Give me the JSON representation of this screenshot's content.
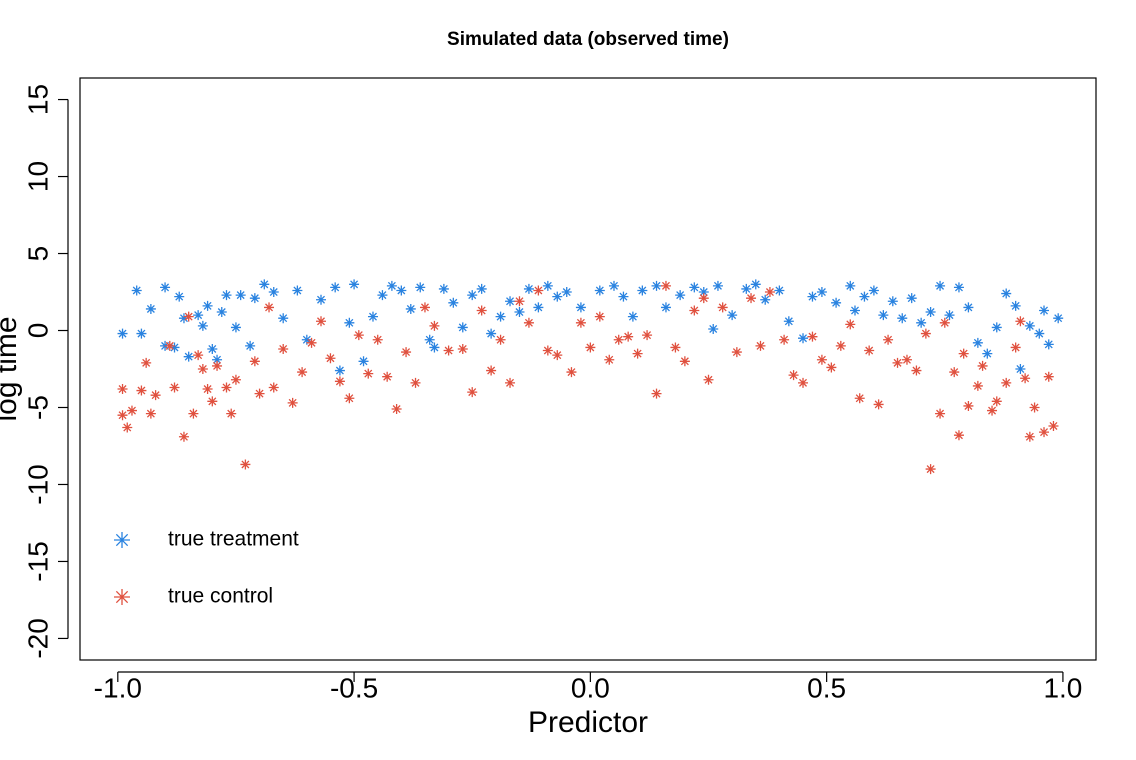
{
  "chart_data": {
    "type": "scatter",
    "title": "Simulated data (observed time)",
    "xlabel": "Predictor",
    "ylabel": "log time",
    "xlim": [
      -1.08,
      1.07
    ],
    "ylim": [
      -21.4,
      16.4
    ],
    "xticks": [
      {
        "value": -1.0,
        "label": "-1.0"
      },
      {
        "value": -0.5,
        "label": "-0.5"
      },
      {
        "value": 0.0,
        "label": "0.0"
      },
      {
        "value": 0.5,
        "label": "0.5"
      },
      {
        "value": 1.0,
        "label": "1.0"
      }
    ],
    "yticks": [
      -20,
      -15,
      -10,
      -5,
      0,
      5,
      10,
      15
    ],
    "legend": "bottomleft",
    "marker": "asterisk",
    "series": [
      {
        "name": "true treatment",
        "color": "#2a83e0",
        "x": [
          -0.99,
          -0.96,
          -0.95,
          -0.93,
          -0.9,
          -0.9,
          -0.88,
          -0.87,
          -0.86,
          -0.85,
          -0.83,
          -0.82,
          -0.81,
          -0.8,
          -0.79,
          -0.78,
          -0.77,
          -0.75,
          -0.74,
          -0.72,
          -0.71,
          -0.69,
          -0.67,
          -0.65,
          -0.62,
          -0.6,
          -0.57,
          -0.54,
          -0.53,
          -0.51,
          -0.5,
          -0.48,
          -0.46,
          -0.44,
          -0.42,
          -0.4,
          -0.38,
          -0.36,
          -0.34,
          -0.33,
          -0.31,
          -0.29,
          -0.27,
          -0.25,
          -0.23,
          -0.21,
          -0.19,
          -0.17,
          -0.15,
          -0.13,
          -0.11,
          -0.09,
          -0.07,
          -0.05,
          -0.02,
          0.02,
          0.05,
          0.07,
          0.09,
          0.11,
          0.14,
          0.16,
          0.19,
          0.22,
          0.24,
          0.26,
          0.27,
          0.3,
          0.33,
          0.35,
          0.37,
          0.4,
          0.42,
          0.45,
          0.47,
          0.49,
          0.52,
          0.55,
          0.56,
          0.58,
          0.6,
          0.62,
          0.64,
          0.66,
          0.68,
          0.7,
          0.72,
          0.74,
          0.76,
          0.78,
          0.8,
          0.82,
          0.84,
          0.86,
          0.88,
          0.9,
          0.91,
          0.93,
          0.95,
          0.96,
          0.97,
          0.99
        ],
        "y": [
          -0.2,
          2.6,
          -0.2,
          1.4,
          2.8,
          -1.0,
          -1.1,
          2.2,
          0.8,
          -1.7,
          1.0,
          0.3,
          1.6,
          -1.2,
          -1.9,
          1.2,
          2.3,
          0.2,
          2.3,
          -1.0,
          2.1,
          3.0,
          2.5,
          0.8,
          2.6,
          -0.6,
          2.0,
          2.8,
          -2.6,
          0.5,
          3.0,
          -2.0,
          0.9,
          2.3,
          2.9,
          2.6,
          1.4,
          2.8,
          -0.6,
          -1.1,
          2.7,
          1.8,
          0.2,
          2.3,
          2.7,
          -0.2,
          0.9,
          1.9,
          1.2,
          2.7,
          1.5,
          2.9,
          2.2,
          2.5,
          1.5,
          2.6,
          2.9,
          2.2,
          0.9,
          2.6,
          2.9,
          1.5,
          2.3,
          2.8,
          2.5,
          0.1,
          2.9,
          1.0,
          2.7,
          3.0,
          2.0,
          2.6,
          0.6,
          -0.5,
          2.2,
          2.5,
          1.8,
          2.9,
          1.3,
          2.2,
          2.6,
          1.0,
          1.9,
          0.8,
          2.1,
          0.5,
          1.2,
          2.9,
          1.0,
          2.8,
          1.5,
          -0.8,
          -1.5,
          0.2,
          2.4,
          1.6,
          -2.5,
          0.3,
          -0.2,
          1.3,
          -0.9,
          0.8
        ]
      },
      {
        "name": "true control",
        "color": "#e0513f",
        "x": [
          -0.99,
          -0.99,
          -0.98,
          -0.97,
          -0.95,
          -0.94,
          -0.93,
          -0.92,
          -0.89,
          -0.88,
          -0.86,
          -0.85,
          -0.84,
          -0.83,
          -0.82,
          -0.81,
          -0.8,
          -0.79,
          -0.77,
          -0.76,
          -0.75,
          -0.73,
          -0.71,
          -0.7,
          -0.68,
          -0.67,
          -0.65,
          -0.63,
          -0.61,
          -0.59,
          -0.57,
          -0.55,
          -0.53,
          -0.51,
          -0.49,
          -0.47,
          -0.45,
          -0.43,
          -0.41,
          -0.39,
          -0.37,
          -0.35,
          -0.33,
          -0.3,
          -0.27,
          -0.25,
          -0.23,
          -0.21,
          -0.19,
          -0.17,
          -0.15,
          -0.13,
          -0.11,
          -0.09,
          -0.07,
          -0.04,
          -0.02,
          0.0,
          0.02,
          0.04,
          0.06,
          0.08,
          0.1,
          0.12,
          0.14,
          0.16,
          0.18,
          0.2,
          0.22,
          0.24,
          0.25,
          0.28,
          0.31,
          0.34,
          0.36,
          0.38,
          0.41,
          0.43,
          0.45,
          0.47,
          0.49,
          0.51,
          0.53,
          0.55,
          0.57,
          0.59,
          0.61,
          0.63,
          0.65,
          0.67,
          0.69,
          0.71,
          0.72,
          0.74,
          0.75,
          0.77,
          0.78,
          0.79,
          0.8,
          0.82,
          0.83,
          0.85,
          0.86,
          0.88,
          0.9,
          0.91,
          0.92,
          0.93,
          0.94,
          0.96,
          0.97,
          0.98
        ],
        "y": [
          -3.8,
          -5.5,
          -6.3,
          -5.2,
          -3.9,
          -2.1,
          -5.4,
          -4.2,
          -1.0,
          -3.7,
          -6.9,
          0.9,
          -5.4,
          -1.6,
          -2.5,
          -3.8,
          -4.6,
          -2.3,
          -3.7,
          -5.4,
          -3.2,
          -8.7,
          -2.0,
          -4.1,
          1.5,
          -3.7,
          -1.2,
          -4.7,
          -2.7,
          -0.8,
          0.6,
          -1.8,
          -3.3,
          -4.4,
          -0.3,
          -2.8,
          -0.6,
          -3.0,
          -5.1,
          -1.4,
          -3.4,
          1.5,
          0.3,
          -1.3,
          -1.2,
          -4.0,
          1.3,
          -2.6,
          -0.6,
          -3.4,
          1.9,
          0.5,
          2.6,
          -1.3,
          -1.6,
          -2.7,
          0.5,
          -1.1,
          0.9,
          -1.9,
          -0.6,
          -0.4,
          -1.5,
          -0.3,
          -4.1,
          2.9,
          -1.1,
          -2.0,
          1.3,
          2.1,
          -3.2,
          1.5,
          -1.4,
          2.1,
          -1.0,
          2.5,
          -0.6,
          -2.9,
          -3.4,
          -0.4,
          -1.9,
          -2.4,
          -1.0,
          0.4,
          -4.4,
          -1.3,
          -4.8,
          -0.6,
          -2.1,
          -1.9,
          -2.6,
          -0.2,
          -9.0,
          -5.4,
          0.5,
          -2.7,
          -6.8,
          -1.5,
          -4.9,
          -3.6,
          -2.3,
          -5.2,
          -4.6,
          -3.4,
          -1.1,
          0.6,
          -3.1,
          -6.9,
          -5.0,
          -6.6,
          -3.0,
          -6.2
        ]
      }
    ]
  }
}
